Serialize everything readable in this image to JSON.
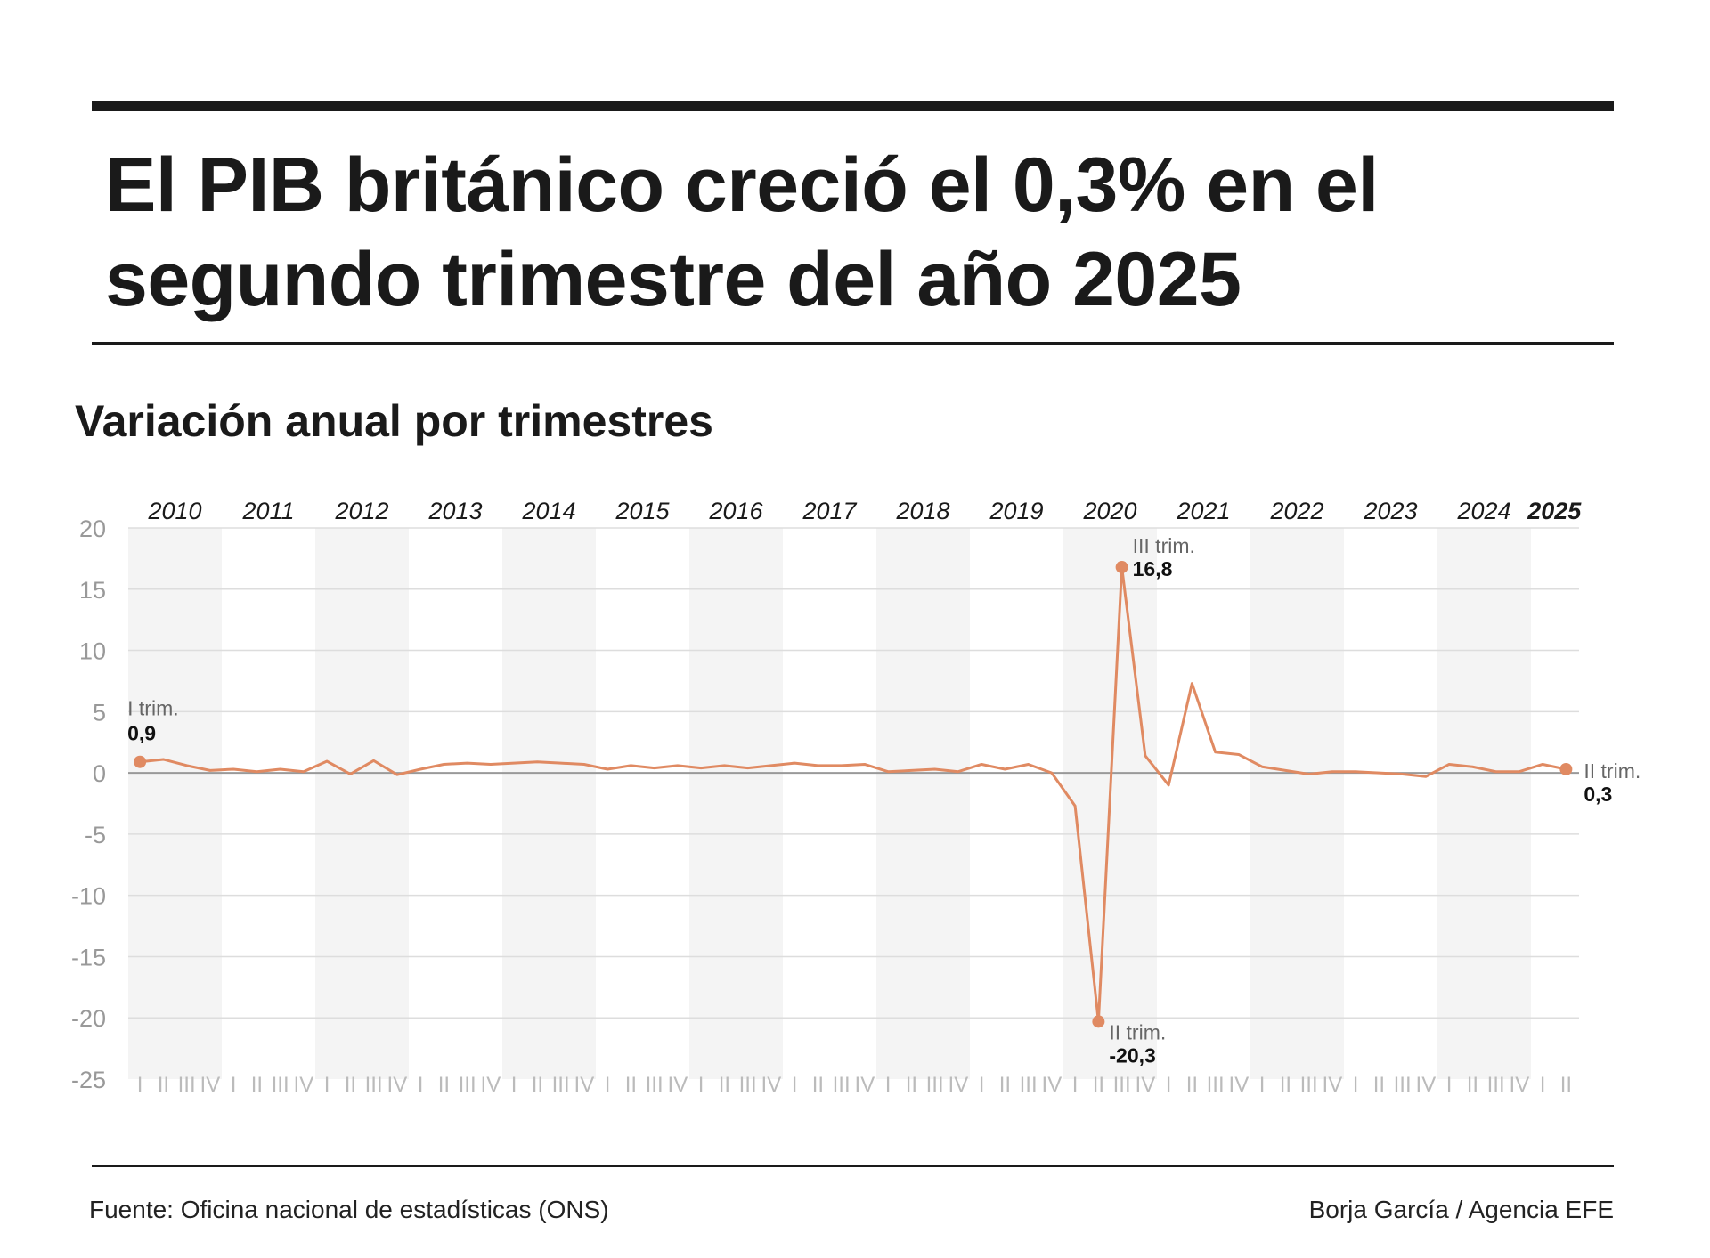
{
  "title": "El PIB británico creció el 0,3% en el segundo trimestre del año 2025",
  "footer": {
    "source": "Fuente: Oficina nacional de estadísticas (ONS)",
    "credit": "Borja García / Agencia EFE"
  },
  "chart_data": {
    "type": "line",
    "title": "Variación anual por trimestres",
    "years": [
      "2010",
      "2011",
      "2012",
      "2013",
      "2014",
      "2015",
      "2016",
      "2017",
      "2018",
      "2019",
      "2020",
      "2021",
      "2022",
      "2023",
      "2024",
      "2025"
    ],
    "quarter_labels": [
      "I",
      "II",
      "III",
      "IV"
    ],
    "ylim": [
      -25,
      20
    ],
    "yticks": [
      20,
      15,
      10,
      5,
      0,
      -5,
      -10,
      -15,
      -20,
      -25
    ],
    "color": "#e08a62",
    "values": [
      0.9,
      1.1,
      0.6,
      0.2,
      0.3,
      0.1,
      0.3,
      0.1,
      0.95,
      -0.1,
      1.0,
      -0.15,
      0.3,
      0.7,
      0.8,
      0.7,
      0.8,
      0.9,
      0.8,
      0.7,
      0.3,
      0.6,
      0.4,
      0.6,
      0.4,
      0.6,
      0.4,
      0.6,
      0.8,
      0.6,
      0.6,
      0.7,
      0.1,
      0.2,
      0.3,
      0.1,
      0.7,
      0.3,
      0.7,
      0.0,
      -2.7,
      -20.3,
      16.8,
      1.4,
      -1.0,
      7.3,
      1.7,
      1.5,
      0.5,
      0.2,
      -0.1,
      0.1,
      0.1,
      0.0,
      -0.1,
      -0.3,
      0.7,
      0.5,
      0.1,
      0.1,
      0.7,
      0.3
    ],
    "annotations": [
      {
        "index": 0,
        "label": "I trim.",
        "value": "0,9"
      },
      {
        "index": 42,
        "label": "III trim.",
        "value": "16,8"
      },
      {
        "index": 41,
        "label": "II trim.",
        "value": "-20,3"
      },
      {
        "index": 61,
        "label": "II trim.",
        "value": "0,3"
      }
    ]
  }
}
